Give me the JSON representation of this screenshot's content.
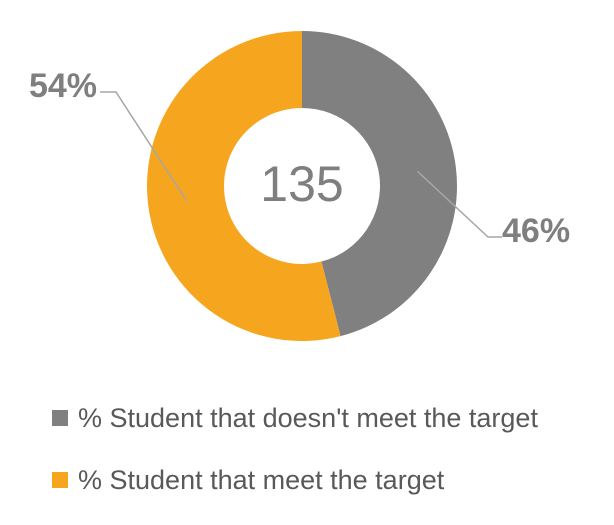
{
  "chart_data": {
    "type": "pie",
    "variant": "doughnut",
    "center_label": "135",
    "slices": [
      {
        "label": "% Student that doesn't meet the target",
        "value": 46,
        "data_label": "46%",
        "color": "#808080"
      },
      {
        "label": "% Student that meet the target",
        "value": 54,
        "data_label": "54%",
        "color": "#F5A61E"
      }
    ],
    "legend_position": "bottom-left"
  }
}
